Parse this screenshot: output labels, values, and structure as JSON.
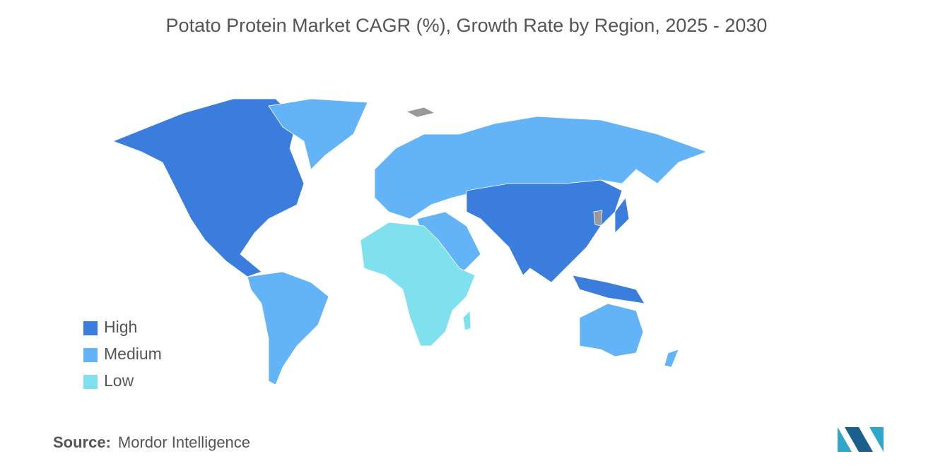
{
  "title": "Potato Protein Market CAGR (%), Growth Rate by Region, 2025 - 2030",
  "legend": [
    {
      "label": "High",
      "color": "#3b7ddd"
    },
    {
      "label": "Medium",
      "color": "#63b3f7"
    },
    {
      "label": "Low",
      "color": "#7fe1ee"
    }
  ],
  "source": {
    "label": "Source:",
    "text": "Mordor Intelligence"
  }
}
